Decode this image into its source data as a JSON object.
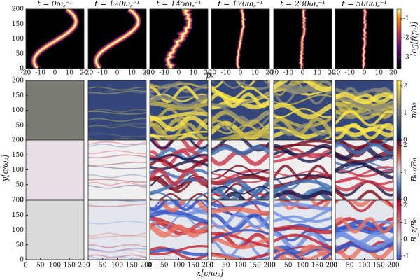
{
  "titles": [
    "t = 0ω꜀⁻¹",
    "t = 120ω꜀⁻¹",
    "t = 145ω꜀⁻¹",
    "t = 170ω꜀⁻¹",
    "t = 230ω꜀⁻¹",
    "t = 500ω꜀⁻¹"
  ],
  "top_x_label": "pₓ",
  "y_label": "y[c/ωₚ]",
  "x_label": "x[c/ωₚ]",
  "top_xlim": [
    -20,
    20
  ],
  "top_xticks": [
    -20,
    -10,
    0,
    10,
    20
  ],
  "ylim": [
    0,
    200
  ],
  "yticks": [
    0,
    50,
    100,
    150,
    200
  ],
  "xlim": [
    0,
    200
  ],
  "xticks": [
    0,
    50,
    100,
    150,
    200
  ],
  "colorbars": [
    {
      "label": "log[f(pₓ)]",
      "lim": [
        -3.6,
        -0.5
      ],
      "ticks": [
        -3,
        -2,
        -1
      ]
    },
    {
      "label": "n/n₀",
      "lim": [
        0,
        2.2
      ],
      "ticks": [
        0,
        1,
        2
      ]
    },
    {
      "label": "Bₜₒₜ/B₀",
      "lim": [
        0,
        2.2
      ],
      "ticks": [
        0,
        1,
        2
      ]
    },
    {
      "label": "B_z/B₀",
      "lim": [
        -1.2,
        2.3
      ],
      "ticks": [
        -1,
        0,
        1,
        2
      ]
    }
  ]
}
